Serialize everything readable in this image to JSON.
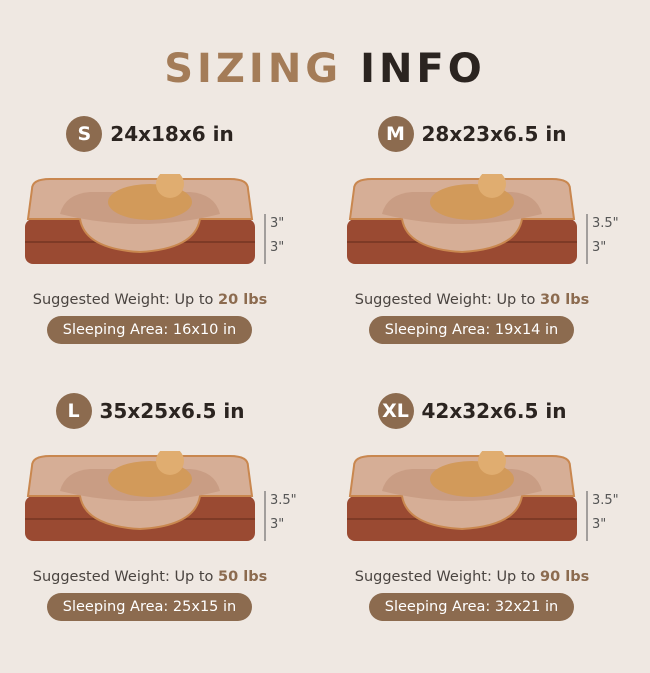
{
  "title": {
    "part1": "SIZING",
    "part2": "INFO"
  },
  "sizes": [
    {
      "badge": "S",
      "dimensions": "24x18x6 in",
      "dims": [
        "3\"",
        "3\""
      ],
      "weight_prefix": "Suggested Weight: Up to",
      "weight_value": "20 lbs",
      "sleeping_area": "Sleeping Area: 16x10 in"
    },
    {
      "badge": "M",
      "dimensions": "28x23x6.5 in",
      "dims": [
        "3.5\"",
        "3\""
      ],
      "weight_prefix": "Suggested Weight: Up to",
      "weight_value": "30 lbs",
      "sleeping_area": "Sleeping Area: 19x14 in"
    },
    {
      "badge": "L",
      "dimensions": "35x25x6.5 in",
      "dims": [
        "3.5\"",
        "3\""
      ],
      "weight_prefix": "Suggested Weight: Up to",
      "weight_value": "50 lbs",
      "sleeping_area": "Sleeping Area: 25x15 in"
    },
    {
      "badge": "XL",
      "dimensions": "42x32x6.5 in",
      "dims": [
        "3.5\"",
        "3\""
      ],
      "weight_prefix": "Suggested Weight: Up to",
      "weight_value": "90 lbs",
      "sleeping_area": "Sleeping Area: 32x21 in"
    }
  ],
  "colors": {
    "accent": "#8c6b4f",
    "title_tan": "#a47c58",
    "bed_base": "#9a4a32",
    "bed_top": "#d9b39c"
  }
}
